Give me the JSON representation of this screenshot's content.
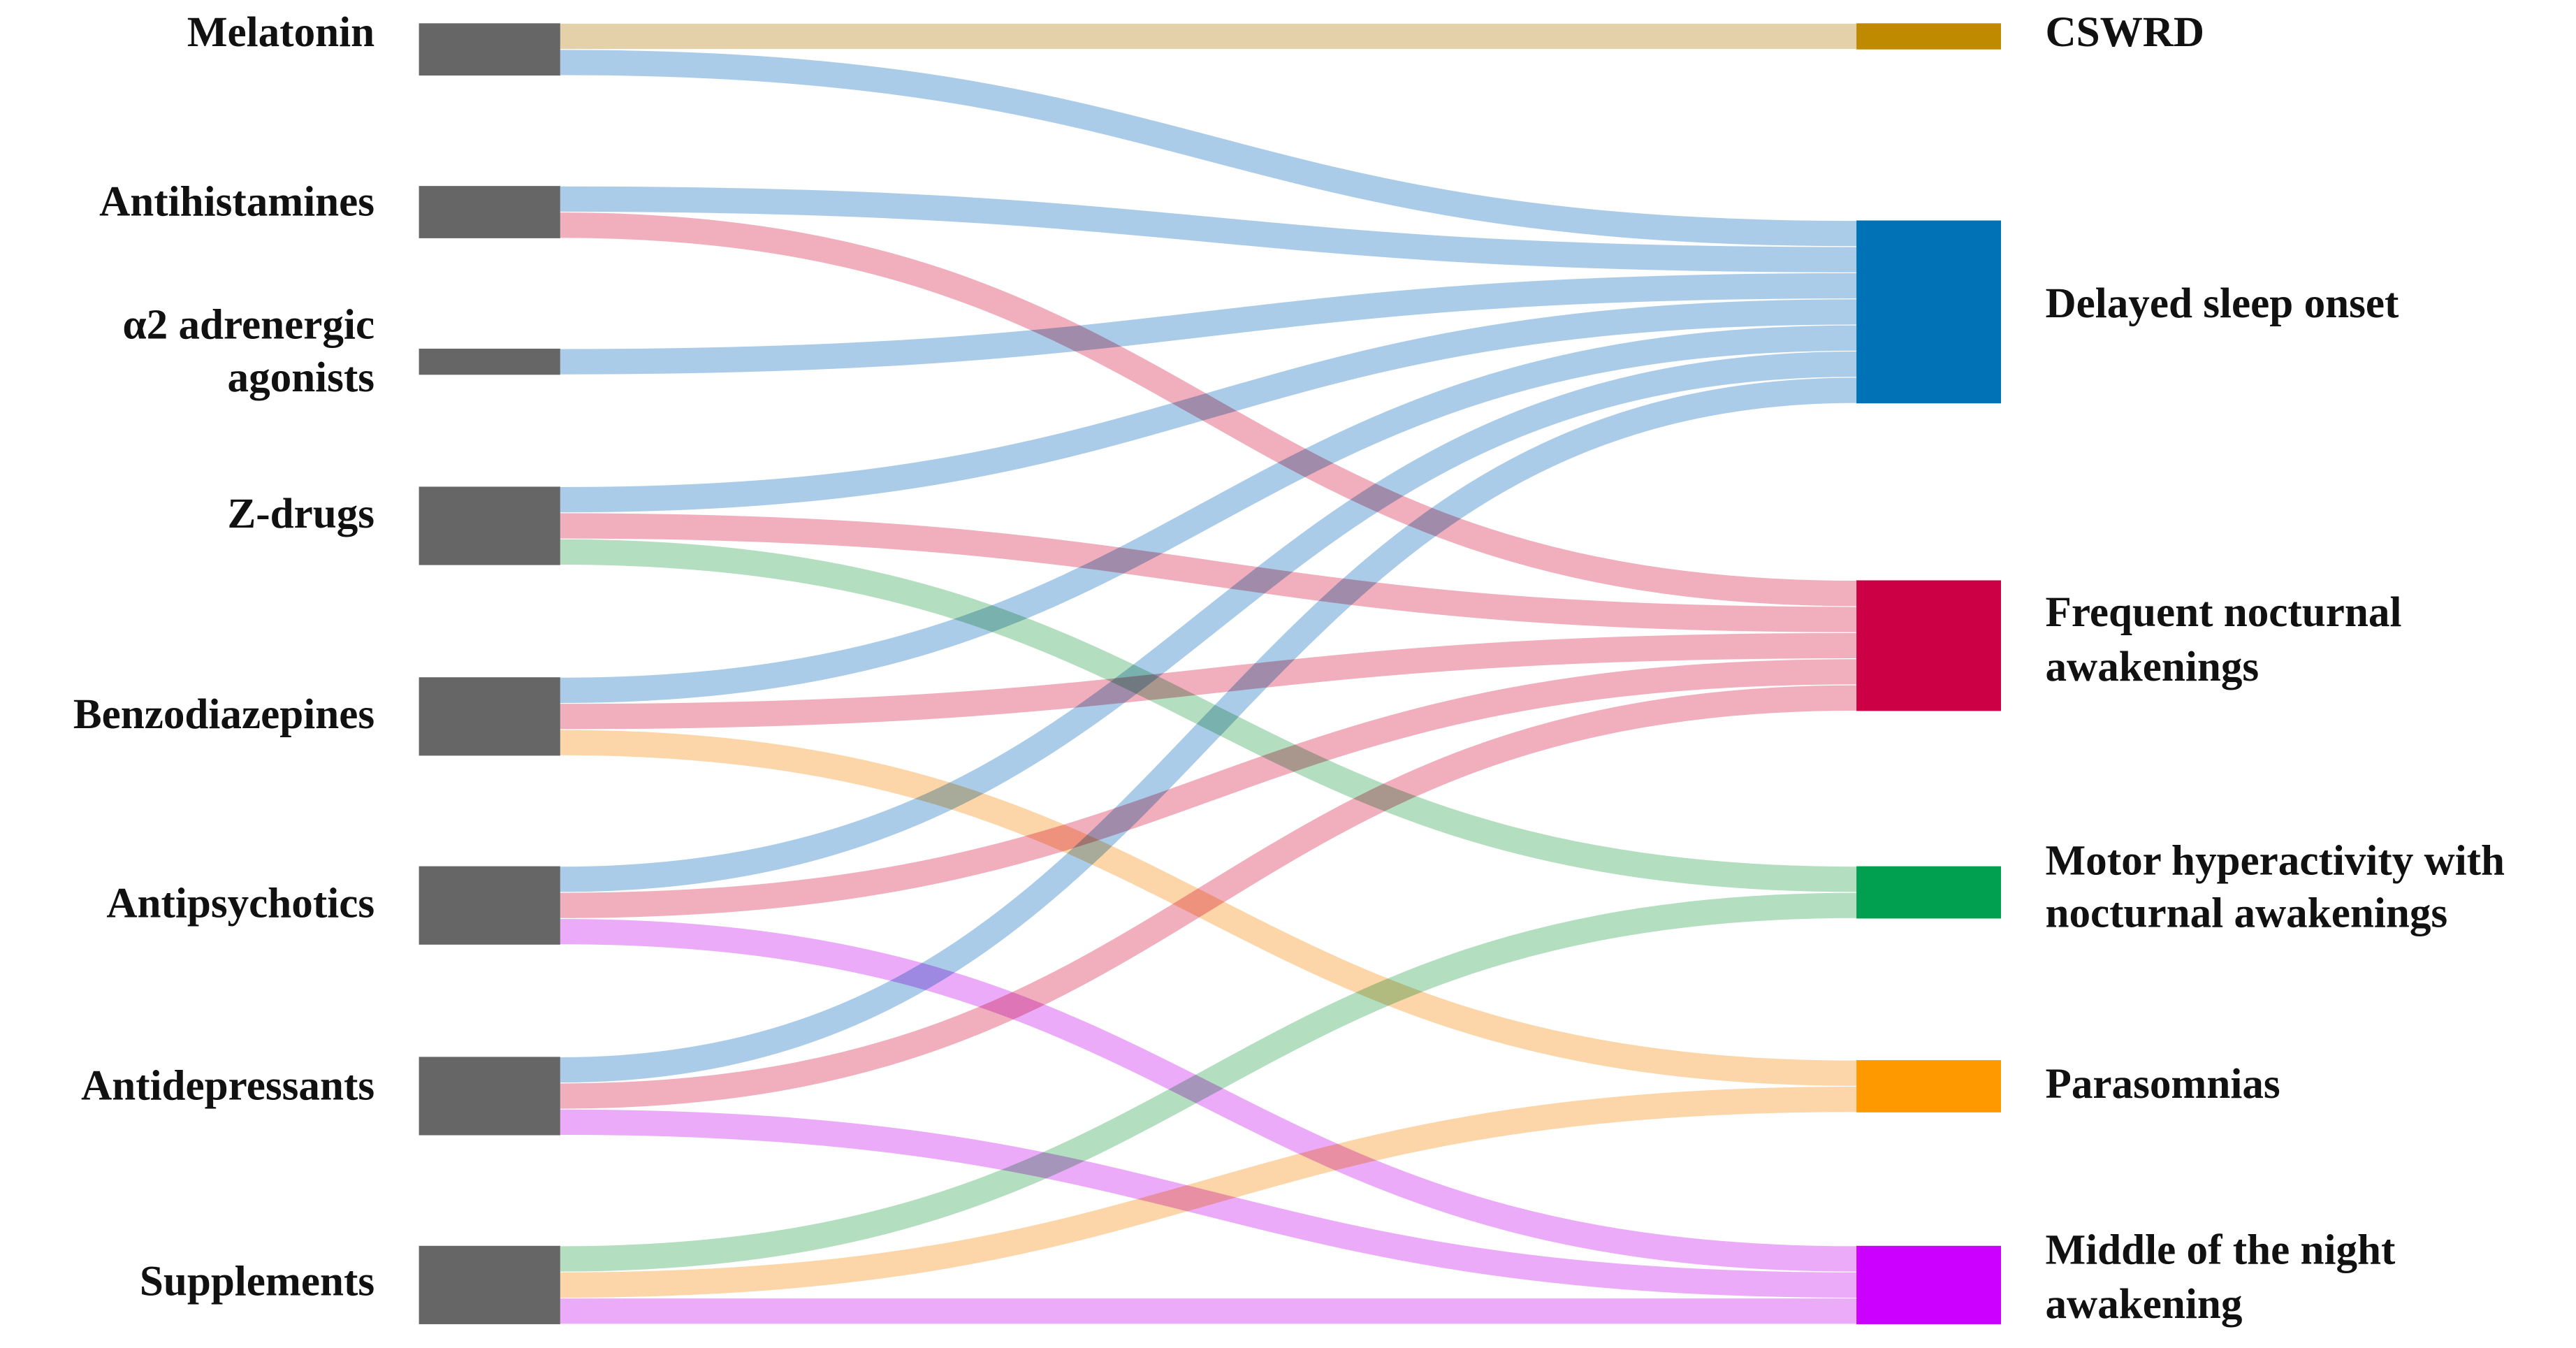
{
  "source_nodes": [
    [
      "Melatonin"
    ],
    [
      "Antihistamines"
    ],
    [
      "α2 adrenergic",
      "agonists"
    ],
    [
      "Z-drugs"
    ],
    [
      "Benzodiazepines"
    ],
    [
      "Antipsychotics"
    ],
    [
      "Antidepressants"
    ],
    [
      "Supplements"
    ]
  ],
  "target_nodes": [
    [
      "CSWRD"
    ],
    [
      "Delayed sleep onset"
    ],
    [
      "Frequent nocturnal",
      "awakenings"
    ],
    [
      "Motor hyperactivity with",
      "nocturnal awakenings"
    ],
    [
      "Parasomnias"
    ],
    [
      "Middle of the night",
      "awakening"
    ]
  ]
}
